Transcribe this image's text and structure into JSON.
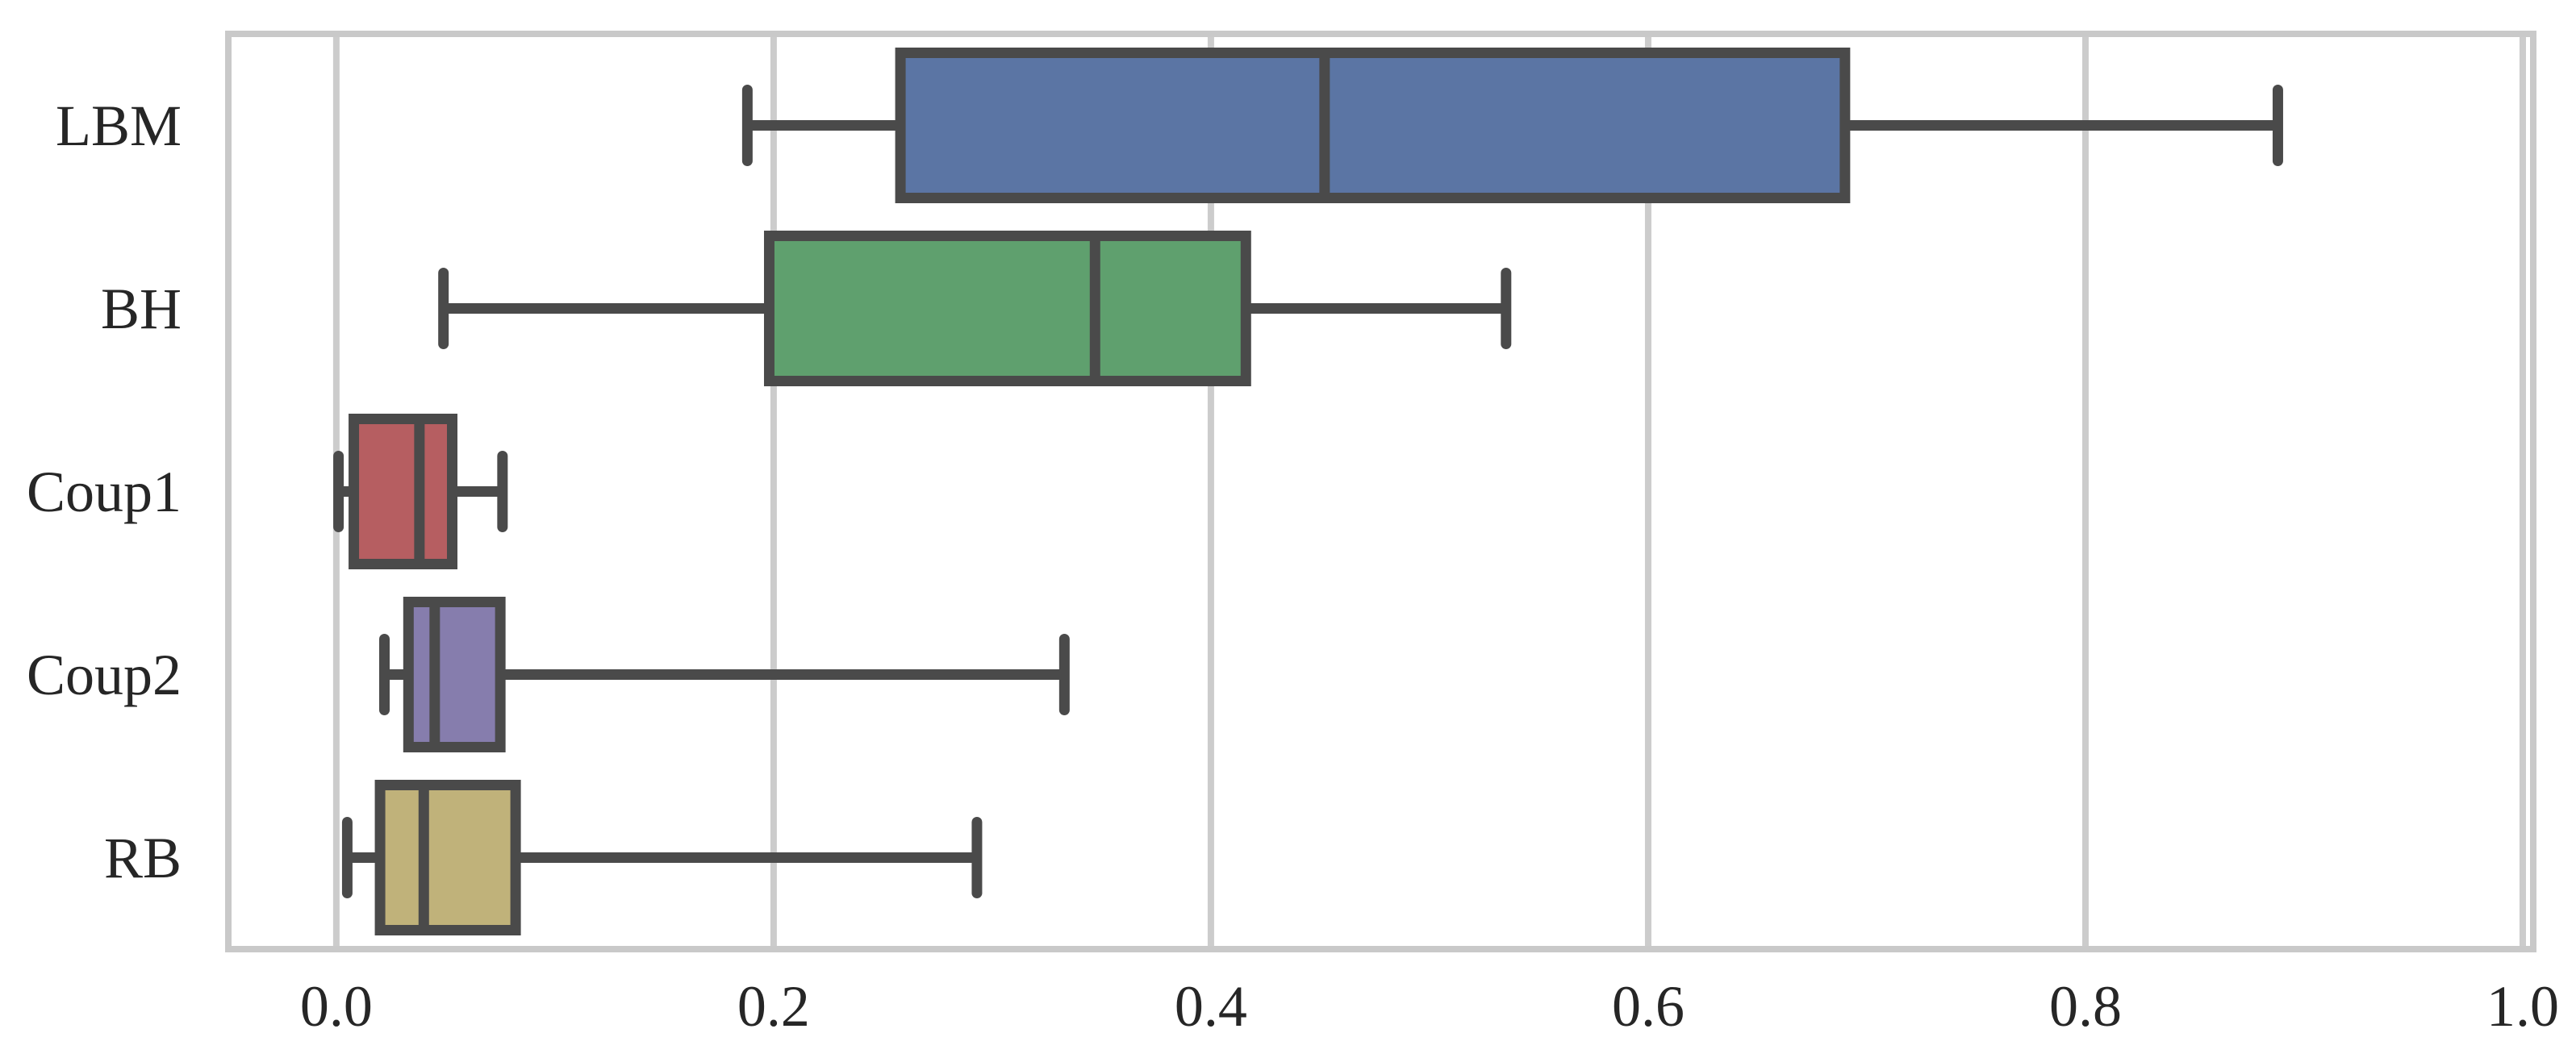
{
  "chart_data": {
    "type": "box",
    "orientation": "horizontal",
    "categories": [
      "LBM",
      "BH",
      "Coup1",
      "Coup2",
      "RB"
    ],
    "series": [
      {
        "name": "LBM",
        "whisker_low": 0.188,
        "q1": 0.258,
        "median": 0.452,
        "q3": 0.69,
        "whisker_high": 0.888,
        "color": "#5b75a4"
      },
      {
        "name": "BH",
        "whisker_low": 0.049,
        "q1": 0.198,
        "median": 0.347,
        "q3": 0.416,
        "whisker_high": 0.535,
        "color": "#5fa06e"
      },
      {
        "name": "Coup1",
        "whisker_low": 0.001,
        "q1": 0.008,
        "median": 0.038,
        "q3": 0.053,
        "whisker_high": 0.076,
        "color": "#b65e61"
      },
      {
        "name": "Coup2",
        "whisker_low": 0.022,
        "q1": 0.033,
        "median": 0.045,
        "q3": 0.075,
        "whisker_high": 0.333,
        "color": "#867dad"
      },
      {
        "name": "RB",
        "whisker_low": 0.005,
        "q1": 0.02,
        "median": 0.04,
        "q3": 0.082,
        "whisker_high": 0.293,
        "color": "#c0b27a"
      }
    ],
    "x_ticks": [
      0.0,
      0.2,
      0.4,
      0.6,
      0.8,
      1.0
    ],
    "x_tick_labels": [
      "0.0",
      "0.2",
      "0.4",
      "0.6",
      "0.8",
      "1.0"
    ],
    "xlim": [
      -0.0494,
      1.0048
    ],
    "grid": true,
    "legend": false,
    "style": {
      "line_color": "#4a4a4a",
      "grid_color": "#cccccc",
      "spine_color": "#c9c9c9",
      "label_color": "#262626",
      "background": "#ffffff"
    }
  }
}
